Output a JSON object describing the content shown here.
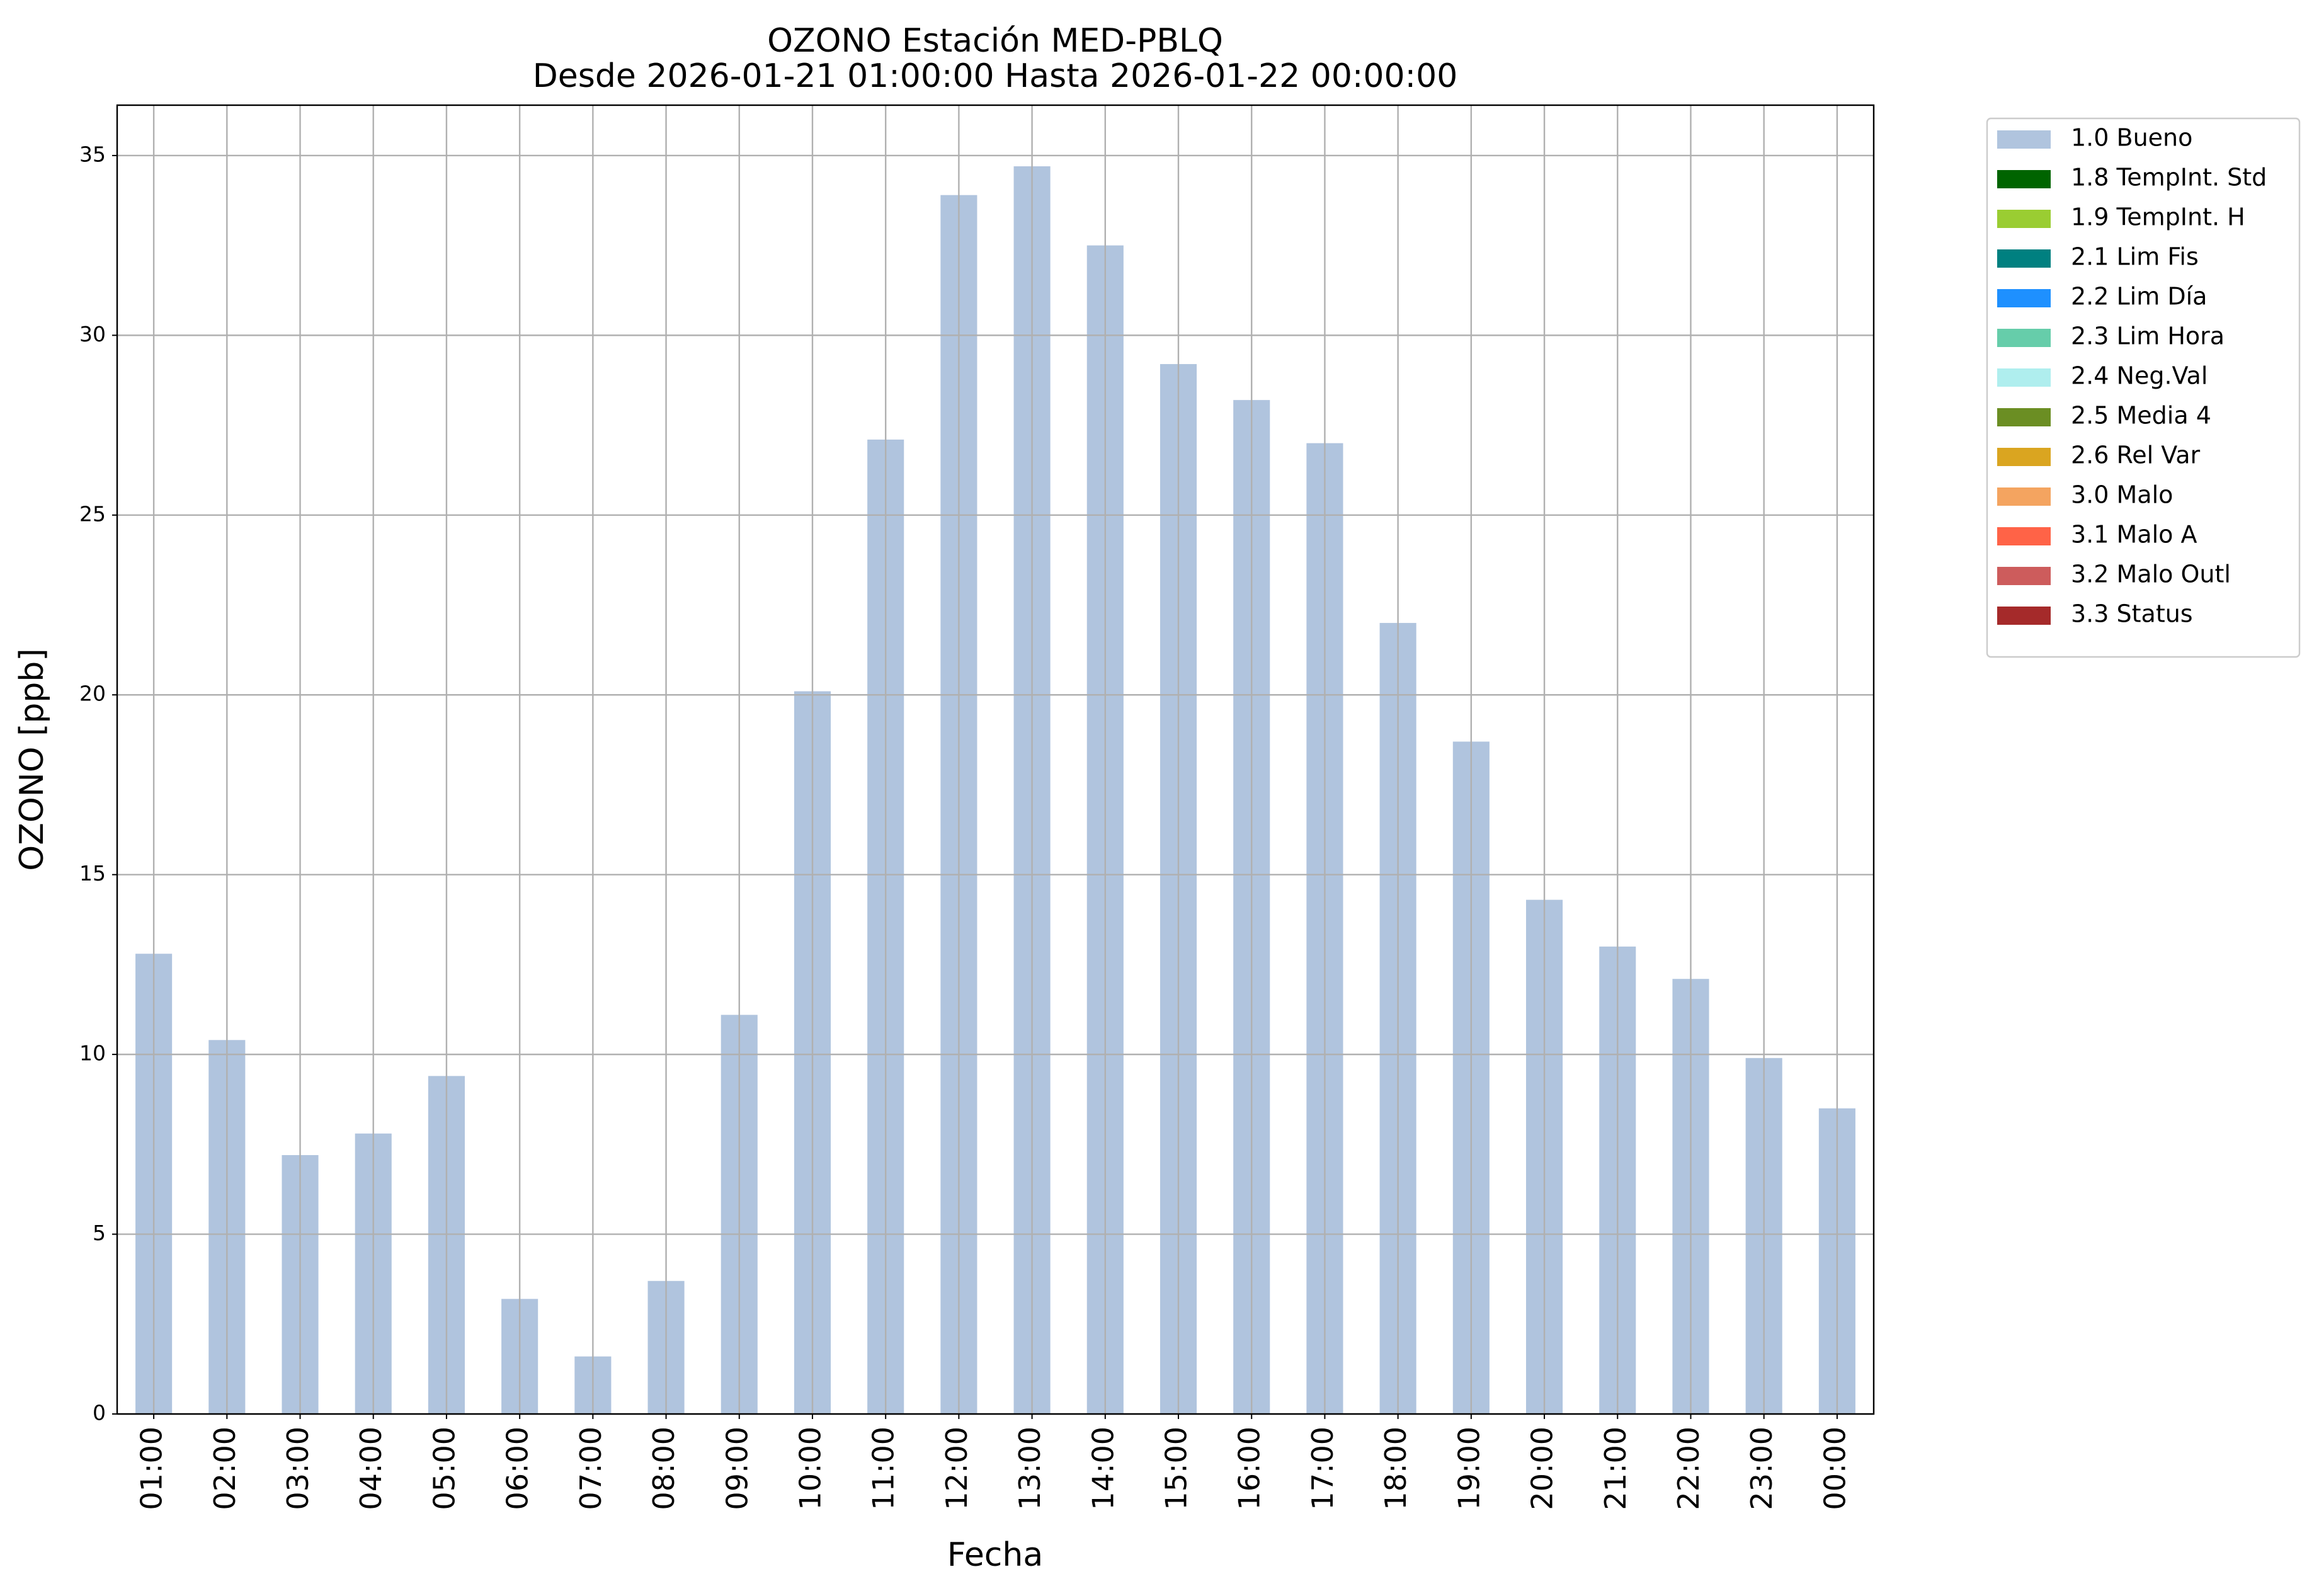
{
  "chart_data": {
    "type": "bar",
    "title": "OZONO Estación MED-PBLQ",
    "subtitle": "Desde 2026-01-21 01:00:00 Hasta 2026-01-22 00:00:00",
    "x_label": "Fecha",
    "y_label": "OZONO [ppb]",
    "categories": [
      "01:00",
      "02:00",
      "03:00",
      "04:00",
      "05:00",
      "06:00",
      "07:00",
      "08:00",
      "09:00",
      "10:00",
      "11:00",
      "12:00",
      "13:00",
      "14:00",
      "15:00",
      "16:00",
      "17:00",
      "18:00",
      "19:00",
      "20:00",
      "21:00",
      "22:00",
      "23:00",
      "00:00"
    ],
    "series": [
      {
        "name": "1.0 Bueno",
        "color": "#b0c4de",
        "values": [
          12.8,
          10.4,
          7.2,
          7.8,
          9.4,
          3.2,
          1.6,
          3.7,
          11.1,
          20.1,
          27.1,
          33.9,
          34.7,
          32.5,
          29.2,
          28.2,
          27.0,
          22.0,
          18.7,
          14.3,
          13.0,
          12.1,
          9.9,
          8.5
        ]
      },
      {
        "name": "1.8 TempInt. Std",
        "color": "#006400"
      },
      {
        "name": "1.9 TempInt. H",
        "color": "#9acd32"
      },
      {
        "name": "2.1 Lim Fis",
        "color": "#008080"
      },
      {
        "name": "2.2 Lim Día",
        "color": "#1e90ff"
      },
      {
        "name": "2.3 Lim Hora",
        "color": "#66cdaa"
      },
      {
        "name": "2.4 Neg.Val",
        "color": "#afeeee"
      },
      {
        "name": "2.5 Media 4",
        "color": "#6b8e23"
      },
      {
        "name": "2.6 Rel Var",
        "color": "#daa520"
      },
      {
        "name": "3.0 Malo",
        "color": "#f4a460"
      },
      {
        "name": "3.1 Malo A",
        "color": "#ff6347"
      },
      {
        "name": "3.2 Malo Outl",
        "color": "#cd5c5c"
      },
      {
        "name": "3.3 Status",
        "color": "#a52a2a"
      }
    ],
    "ylim": [
      0,
      36.4
    ],
    "yticks": [
      0,
      5,
      10,
      15,
      20,
      25,
      30,
      35
    ],
    "grid": true,
    "legend": "outside-upper-right"
  }
}
